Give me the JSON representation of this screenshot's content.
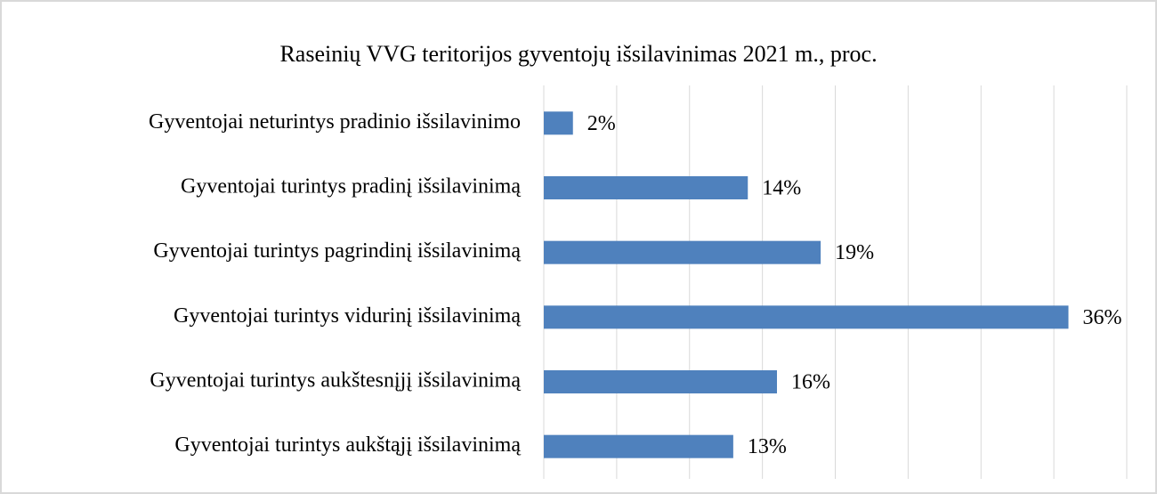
{
  "chart_data": {
    "type": "bar",
    "orientation": "horizontal",
    "title": "Raseinių VVG teritorijos gyventojų išsilavinimas 2021 m., proc.",
    "categories": [
      "Gyventojai neturintys pradinio išsilavinimo",
      "Gyventojai turintys pradinį išsilavinimą",
      "Gyventojai turintys pagrindinį išsilavinimą",
      "Gyventojai turintys vidurinį išsilavinimą",
      "Gyventojai turintys aukštesnįjį išsilavinimą",
      "Gyventojai turintys aukštąjį išsilavinimą"
    ],
    "values": [
      2,
      14,
      19,
      36,
      16,
      13
    ],
    "value_labels": [
      "2%",
      "14%",
      "19%",
      "36%",
      "16%",
      "13%"
    ],
    "color": "#4f81bd",
    "xlim": [
      0,
      40
    ],
    "xticks": [
      0,
      5,
      10,
      15,
      20,
      25,
      30,
      35,
      40
    ],
    "grid": true
  }
}
